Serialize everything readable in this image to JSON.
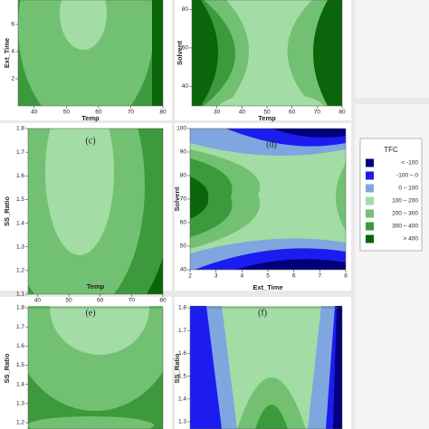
{
  "chart_data": [
    {
      "type": "contour",
      "xlabel": "Temp",
      "ylabel": "Ext_Time",
      "xlim": [
        35,
        80
      ],
      "xticks": [
        40,
        50,
        60,
        70,
        80
      ],
      "ylim": [
        0,
        8
      ],
      "yticks": [
        2,
        4,
        6
      ]
    },
    {
      "type": "contour",
      "xlabel": "Temp",
      "ylabel": "Solvent",
      "xlim": [
        20,
        80
      ],
      "xticks": [
        30,
        40,
        50,
        60,
        70,
        80
      ],
      "ylim": [
        35,
        100
      ],
      "yticks": [
        40,
        60,
        80
      ]
    },
    {
      "type": "contour",
      "panel_label": "(c)",
      "xlabel": "Temp",
      "ylabel": "SS_Ratio",
      "xlim": [
        37,
        80
      ],
      "xticks": [
        40,
        50,
        60,
        70,
        80
      ],
      "ylim": [
        1.1,
        1.8
      ],
      "yticks": [
        1.1,
        1.2,
        1.3,
        1.4,
        1.5,
        1.6,
        1.7,
        1.8
      ]
    },
    {
      "type": "contour",
      "panel_label": "(d)",
      "xlabel": "Ext_Time",
      "ylabel": "Solvent",
      "xlim": [
        2,
        8
      ],
      "xticks": [
        2,
        3,
        4,
        5,
        6,
        7,
        8
      ],
      "ylim": [
        40,
        100
      ],
      "yticks": [
        40,
        50,
        60,
        70,
        80,
        90,
        100
      ]
    },
    {
      "type": "contour",
      "panel_label": "(e)",
      "ylabel": "SS_Ratio",
      "ylim": [
        1.2,
        1.8
      ],
      "yticks": [
        1.2,
        1.3,
        1.4,
        1.5,
        1.6,
        1.7,
        1.8
      ]
    },
    {
      "type": "contour",
      "panel_label": "(f)",
      "ylabel": "SS_Ratio",
      "ylim": [
        1.3,
        1.8
      ],
      "yticks": [
        1.3,
        1.4,
        1.5,
        1.6,
        1.7,
        1.8
      ]
    }
  ],
  "legend": {
    "title": "TFC",
    "entries": [
      {
        "label": "<  -100",
        "color": "#00007a"
      },
      {
        "label": "-100 –   0",
        "color": "#1c1cf0"
      },
      {
        "label": "0 –  100",
        "color": "#7fa6de"
      },
      {
        "label": "100 –  200",
        "color": "#a3dca4"
      },
      {
        "label": "200 –  300",
        "color": "#72c172"
      },
      {
        "label": "300 –  400",
        "color": "#3c9a3c"
      },
      {
        "label": ">  400",
        "color": "#0b650b"
      }
    ]
  }
}
